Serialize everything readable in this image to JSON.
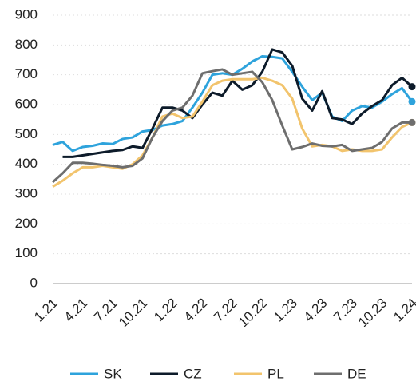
{
  "chart_data": {
    "type": "line",
    "categories": [
      "1.21",
      null,
      null,
      "4.21",
      null,
      null,
      "7.21",
      null,
      null,
      "10.21",
      null,
      null,
      "1.22",
      null,
      null,
      "4.22",
      null,
      null,
      "7.22",
      null,
      null,
      "10.22",
      null,
      null,
      "1.23",
      null,
      null,
      "4.23",
      null,
      null,
      "7.23",
      null,
      null,
      "10.23",
      null,
      null,
      "1.24"
    ],
    "series": [
      {
        "name": "SK",
        "color": "#2ea3dc",
        "values": [
          465,
          475,
          445,
          458,
          462,
          470,
          468,
          485,
          490,
          510,
          515,
          530,
          535,
          545,
          590,
          640,
          700,
          705,
          700,
          720,
          745,
          762,
          760,
          755,
          710,
          660,
          615,
          640,
          560,
          545,
          580,
          595,
          590,
          610,
          635,
          655,
          610
        ]
      },
      {
        "name": "CZ",
        "color": "#0d1b2a",
        "values": [
          null,
          425,
          425,
          430,
          435,
          440,
          445,
          448,
          460,
          455,
          520,
          590,
          590,
          580,
          555,
          600,
          640,
          630,
          680,
          650,
          665,
          710,
          785,
          775,
          730,
          620,
          580,
          645,
          555,
          550,
          535,
          570,
          595,
          615,
          665,
          690,
          660
        ]
      },
      {
        "name": "PL",
        "color": "#f2c46d",
        "values": [
          325,
          345,
          370,
          390,
          390,
          395,
          390,
          385,
          400,
          430,
          490,
          560,
          570,
          555,
          560,
          610,
          665,
          680,
          685,
          685,
          685,
          690,
          680,
          665,
          620,
          520,
          460,
          465,
          460,
          445,
          450,
          445,
          445,
          450,
          490,
          525,
          540
        ]
      },
      {
        "name": "DE",
        "color": "#6e6e6e",
        "values": [
          340,
          370,
          405,
          405,
          402,
          398,
          395,
          390,
          395,
          420,
          490,
          545,
          580,
          590,
          630,
          705,
          712,
          718,
          700,
          705,
          710,
          675,
          615,
          530,
          450,
          458,
          470,
          462,
          460,
          465,
          445,
          450,
          455,
          475,
          520,
          540,
          540
        ]
      }
    ],
    "ylim": [
      0,
      900
    ],
    "yticks": [
      0,
      100,
      200,
      300,
      400,
      500,
      600,
      700,
      800,
      900
    ],
    "grid": true,
    "legend": "bottom"
  }
}
